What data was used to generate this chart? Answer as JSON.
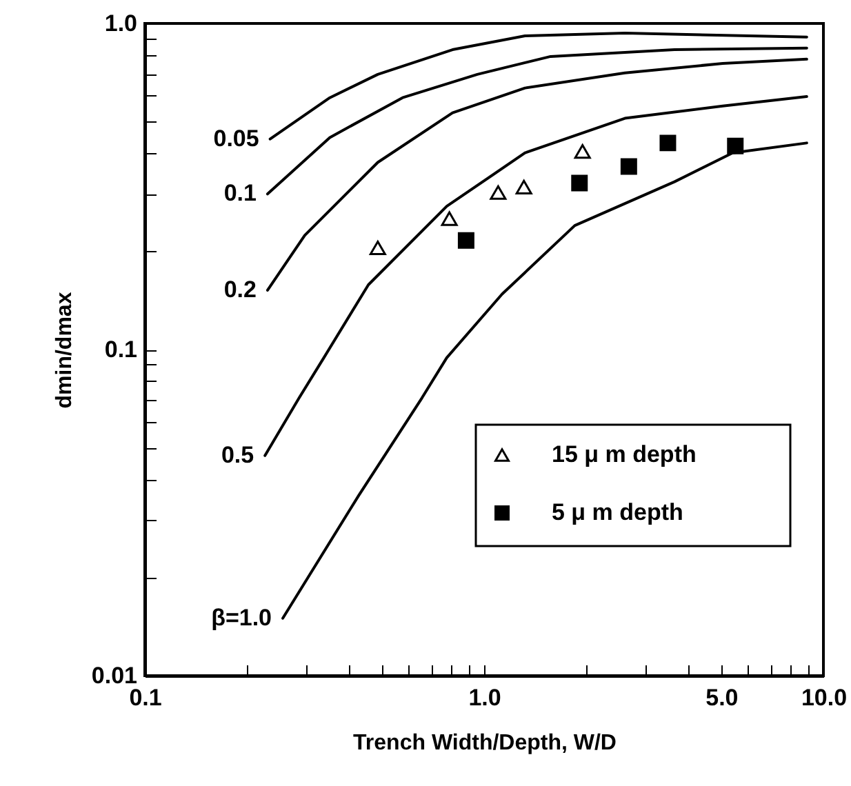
{
  "chart_data": {
    "type": "line",
    "xlabel": "Trench Width/Depth, W/D",
    "ylabel": "dmin/dmax",
    "log": "xy",
    "grid": false,
    "legend": "bottom right",
    "xlim": [
      0.1,
      10
    ],
    "ylim": [
      0.01,
      1.0
    ],
    "xticks": [
      0.1,
      {
        "value": 0.2,
        "label": null
      },
      {
        "value": 0.3,
        "label": null
      },
      {
        "value": 0.4,
        "label": null
      },
      {
        "value": 0.5,
        "label": null
      },
      {
        "value": 0.6,
        "label": null
      },
      {
        "value": 0.7,
        "label": null
      },
      {
        "value": 0.8,
        "label": null
      },
      {
        "value": 0.9,
        "label": null
      },
      {
        "value": 1,
        "label": "1.0"
      },
      {
        "value": 2,
        "label": null
      },
      {
        "value": 3,
        "label": null
      },
      {
        "value": 4,
        "label": null
      },
      {
        "value": 5,
        "label": "5.0"
      },
      {
        "value": 6,
        "label": null
      },
      {
        "value": 7,
        "label": null
      },
      {
        "value": 8,
        "label": null
      },
      {
        "value": 9,
        "label": null
      },
      {
        "value": 10,
        "label": "10.0"
      }
    ],
    "yticks": [
      0.01,
      {
        "value": 0.02,
        "label": null
      },
      {
        "value": 0.03,
        "label": null
      },
      {
        "value": 0.04,
        "label": null
      },
      {
        "value": 0.05,
        "label": null
      },
      {
        "value": 0.06,
        "label": null
      },
      {
        "value": 0.07,
        "label": null
      },
      {
        "value": 0.08,
        "label": null
      },
      {
        "value": 0.09,
        "label": null
      },
      0.1,
      {
        "value": 0.2,
        "label": null
      },
      {
        "value": 0.3,
        "label": null
      },
      {
        "value": 0.4,
        "label": null
      },
      {
        "value": 0.5,
        "label": null
      },
      {
        "value": 0.6,
        "label": null
      },
      {
        "value": 0.7,
        "label": null
      },
      {
        "value": 0.8,
        "label": null
      },
      {
        "value": 0.9,
        "label": null
      },
      {
        "value": 1,
        "label": "1.0"
      }
    ],
    "series": [
      {
        "name": "0.05",
        "color": "#000000",
        "type": "line",
        "x": [
          0.234,
          0.351,
          0.486,
          0.807,
          1.32,
          2.6,
          8.93
        ],
        "values": [
          0.442,
          0.592,
          0.698,
          0.831,
          0.916,
          0.934,
          0.908
        ]
      },
      {
        "name": "0.1",
        "color": "#000000",
        "type": "line",
        "x": [
          0.23,
          0.351,
          0.575,
          0.955,
          1.57,
          3.64,
          8.93
        ],
        "values": [
          0.3,
          0.447,
          0.592,
          0.698,
          0.792,
          0.831,
          0.84
        ]
      },
      {
        "name": "0.2",
        "color": "#000000",
        "type": "line",
        "x": [
          0.23,
          0.296,
          0.486,
          0.807,
          1.32,
          2.6,
          5.05,
          8.93
        ],
        "values": [
          0.152,
          0.224,
          0.375,
          0.532,
          0.634,
          0.705,
          0.754,
          0.777
        ]
      },
      {
        "name": "0.5",
        "color": "#000000",
        "type": "line",
        "x": [
          0.226,
          0.285,
          0.337,
          0.456,
          0.776,
          1.32,
          2.6,
          5.05,
          8.93
        ],
        "values": [
          0.0473,
          0.0711,
          0.0944,
          0.158,
          0.275,
          0.401,
          0.512,
          0.558,
          0.597
        ]
      },
      {
        "name": "β=1.0",
        "color": "#000000",
        "type": "line",
        "x": [
          0.255,
          0.427,
          0.656,
          0.776,
          1.13,
          1.85,
          3.64,
          5.4,
          8.93
        ],
        "values": [
          0.015,
          0.0357,
          0.0711,
          0.0944,
          0.148,
          0.24,
          0.327,
          0.401,
          0.43
        ]
      },
      {
        "name": "15 μ m depth",
        "color": "#000000",
        "type": "scatter",
        "marker": "triangle",
        "x": [
          0.486,
          0.79,
          1.1,
          1.31,
          1.95
        ],
        "values": [
          0.205,
          0.252,
          0.303,
          0.315,
          0.405
        ]
      },
      {
        "name": "5 μ m depth",
        "color": "#000000",
        "type": "scatter",
        "marker": "square",
        "x": [
          0.885,
          1.91,
          2.67,
          3.48,
          5.5
        ],
        "values": [
          0.216,
          0.324,
          0.364,
          0.43,
          0.421
        ]
      }
    ]
  }
}
